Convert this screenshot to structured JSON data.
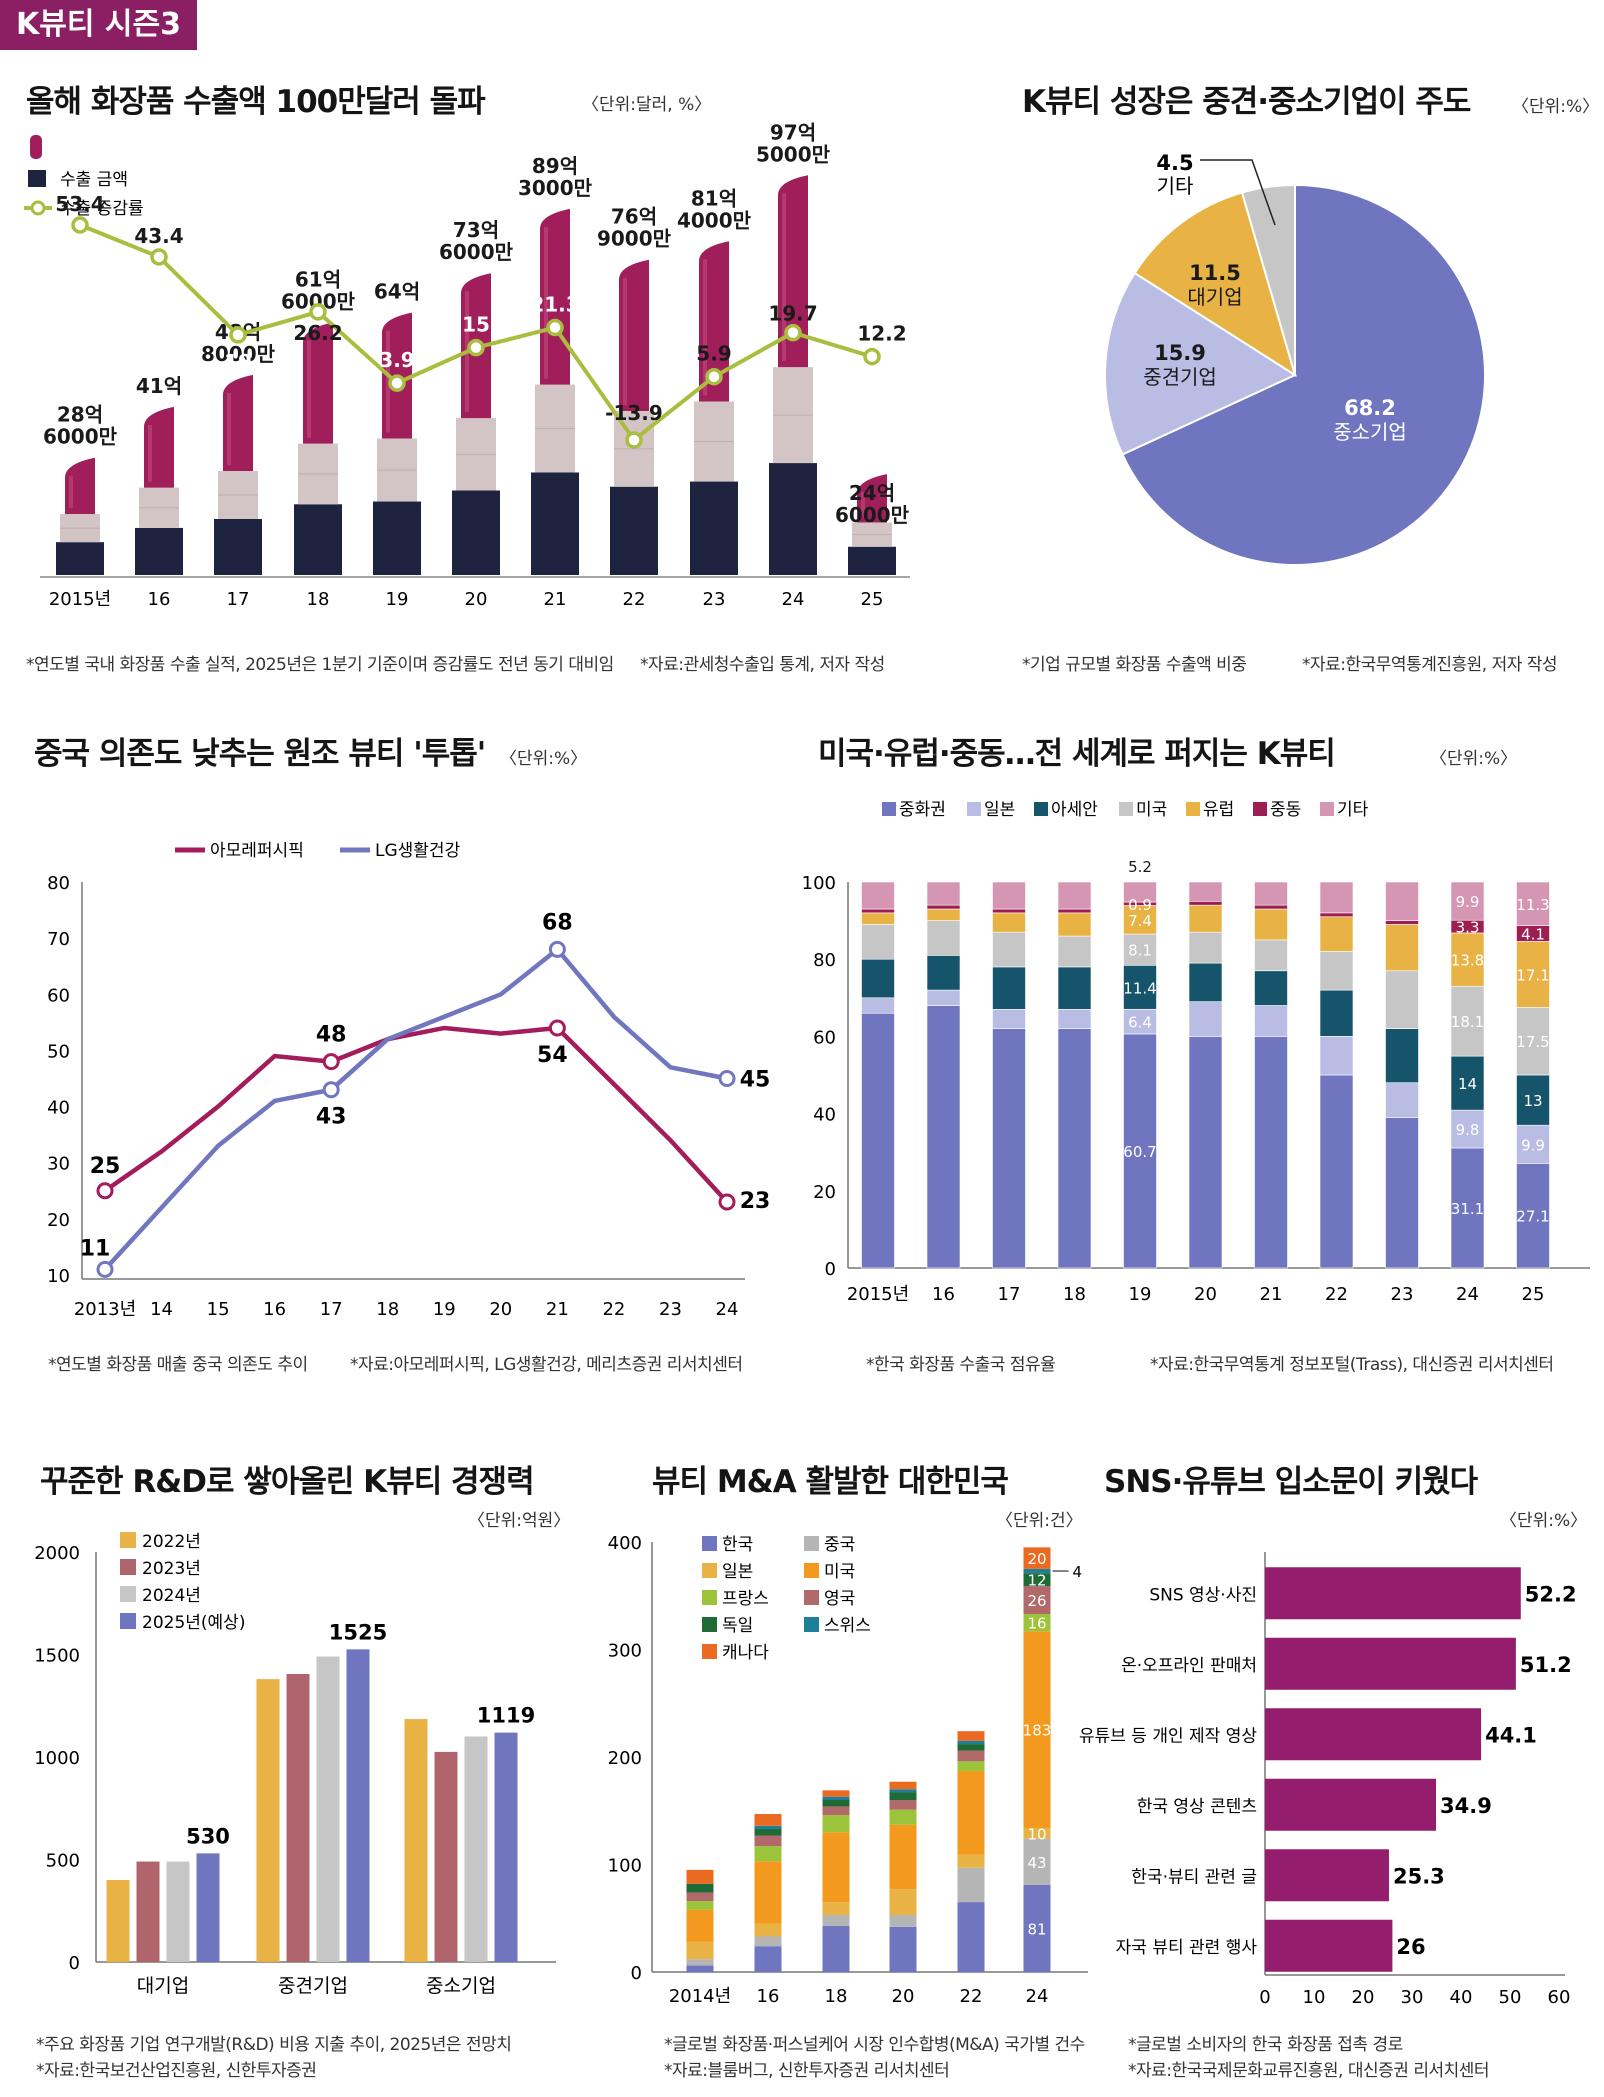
{
  "header": {
    "tag": "K뷰티 시즌3"
  },
  "panels": {
    "exports": {
      "title": "올해 화장품 수출액 100만달러 돌파",
      "unit": "〈단위:달러, %〉",
      "note": "*연도별 국내 화장품 수출 실적, 2025년은 1분기 기준이며 증감률도 전년 동기 대비임",
      "source": "*자료:관세청수출입 통계, 저자 작성"
    },
    "company_size": {
      "title": "K뷰티 성장은 중견·중소기업이 주도",
      "unit": "〈단위:%〉",
      "note": "*기업 규모별 화장품 수출액 비중",
      "source": "*자료:한국무역통계진흥원, 저자 작성"
    },
    "china_dependence": {
      "title": "중국 의존도 낮추는 원조 뷰티 '투톱'",
      "unit": "〈단위:%〉",
      "note": "*연도별 화장품 매출 중국 의존도 추이",
      "source": "*자료:아모레퍼시픽, LG생활건강, 메리츠증권 리서치센터"
    },
    "export_share": {
      "title": "미국·유럽·중동…전 세계로 퍼지는 K뷰티",
      "unit": "〈단위:%〉",
      "note": "*한국 화장품 수출국 점유율",
      "source": "*자료:한국무역통계 정보포털(Trass), 대신증권 리서치센터"
    },
    "rnd": {
      "title": "꾸준한 R&D로 쌓아올린 K뷰티 경쟁력",
      "unit": "〈단위:억원〉",
      "note": "*주요 화장품 기업 연구개발(R&D) 비용 지출 추이, 2025년은 전망치",
      "source": "*자료:한국보건산업진흥원, 신한투자증권"
    },
    "mna": {
      "title": "뷰티 M&A 활발한 대한민국",
      "unit": "〈단위:건〉",
      "note": "*글로벌 화장품·퍼스널케어 시장 인수합병(M&A) 국가별 건수",
      "source": "*자료:블룸버그, 신한투자증권 리서치센터"
    },
    "sns": {
      "title": "SNS·유튜브 입소문이 키웠다",
      "unit": "〈단위:%〉",
      "note": "*글로벌 소비자의 한국 화장품 접촉 경로",
      "source": "*자료:한국국제문화교류진흥원, 대신증권 리서치센터"
    }
  },
  "colors": {
    "tag": "#8a1f64",
    "lipstick": "#a01e59",
    "navy": "#1e2340",
    "beige": "#d3c4c6",
    "green_line": "#aabd3e",
    "amore": "#a41c5c",
    "lg": "#7077bf",
    "periwinkle": "#6f75bf",
    "light_lav": "#b9bde3",
    "orange": "#e8b245",
    "gray": "#c6c6c6"
  },
  "chart_data": [
    {
      "id": "exports",
      "type": "bar",
      "categories": [
        "2015년",
        "16",
        "17",
        "18",
        "19",
        "20",
        "21",
        "22",
        "23",
        "24",
        "25"
      ],
      "series": [
        {
          "name": "수출 금액",
          "values": [
            2.86,
            4.1,
            4.88,
            6.16,
            6.4,
            7.36,
            8.93,
            7.69,
            8.14,
            9.75,
            2.46
          ],
          "unit": "억 달러(×10억)"
        },
        {
          "name": "수출 증감률",
          "values": [
            53.4,
            43.4,
            19,
            26.2,
            3.9,
            15,
            21.3,
            -13.9,
            5.9,
            19.7,
            12.2
          ],
          "unit": "%"
        }
      ],
      "amount_labels": [
        [
          "28억",
          "6000만"
        ],
        [
          "41억"
        ],
        [
          "48억",
          "8000만"
        ],
        [
          "61억",
          "6000만"
        ],
        [
          "64억"
        ],
        [
          "73억",
          "6000만"
        ],
        [
          "89억",
          "3000만"
        ],
        [
          "76억",
          "9000만"
        ],
        [
          "81억",
          "4000만"
        ],
        [
          "97억",
          "5000만"
        ],
        [
          "24억",
          "6000만"
        ]
      ],
      "rate_labels": [
        "53.4",
        "43.4",
        "19",
        "26.2",
        "3.9",
        "15",
        "21.3",
        "-13.9",
        "5.9",
        "19.7",
        "12.2"
      ],
      "legend": [
        "수출 금액",
        "수출 증감률"
      ]
    },
    {
      "id": "company_size",
      "type": "pie",
      "slices": [
        {
          "label": "중소기업",
          "value": 68.2,
          "text": "68.2"
        },
        {
          "label": "중견기업",
          "value": 15.9,
          "text": "15.9"
        },
        {
          "label": "대기업",
          "value": 11.5,
          "text": "11.5"
        },
        {
          "label": "기타",
          "value": 4.5,
          "text": "4.5"
        }
      ]
    },
    {
      "id": "china_dependence",
      "type": "line",
      "x": [
        "2013년",
        "14",
        "15",
        "16",
        "17",
        "18",
        "19",
        "20",
        "21",
        "22",
        "23",
        "24"
      ],
      "ylim": [
        10,
        80
      ],
      "yticks": [
        "80",
        "70",
        "60",
        "50",
        "40",
        "30",
        "20",
        "10"
      ],
      "series": [
        {
          "name": "아모레퍼시픽",
          "values": [
            25,
            32,
            40,
            49,
            48,
            52,
            54,
            53,
            54,
            44,
            34,
            23
          ]
        },
        {
          "name": "LG생활건강",
          "values": [
            11,
            22,
            33,
            41,
            43,
            52,
            56,
            60,
            68,
            56,
            47,
            45
          ]
        }
      ],
      "annotations": [
        {
          "series": 0,
          "index": 0,
          "text": "25"
        },
        {
          "series": 0,
          "index": 4,
          "text": "48"
        },
        {
          "series": 0,
          "index": 8,
          "text": "54"
        },
        {
          "series": 0,
          "index": 11,
          "text": "23"
        },
        {
          "series": 1,
          "index": 0,
          "text": "11"
        },
        {
          "series": 1,
          "index": 4,
          "text": "43"
        },
        {
          "series": 1,
          "index": 8,
          "text": "68"
        },
        {
          "series": 1,
          "index": 11,
          "text": "45"
        }
      ]
    },
    {
      "id": "export_share",
      "type": "bar",
      "stacked": true,
      "categories": [
        "2015년",
        "16",
        "17",
        "18",
        "19",
        "20",
        "21",
        "22",
        "23",
        "24",
        "25"
      ],
      "ylim": [
        0,
        100
      ],
      "yticks": [
        "100",
        "80",
        "60",
        "40",
        "20",
        "0"
      ],
      "series": [
        {
          "name": "중화권",
          "values": [
            66,
            68,
            62,
            62,
            60.7,
            60,
            60,
            50,
            39,
            31.1,
            27.1
          ]
        },
        {
          "name": "일본",
          "values": [
            4,
            4,
            5,
            5,
            6.4,
            9,
            8,
            10,
            9,
            9.8,
            9.9
          ]
        },
        {
          "name": "아세안",
          "values": [
            10,
            9,
            11,
            11,
            11.4,
            10,
            9,
            12,
            14,
            14,
            13
          ]
        },
        {
          "name": "미국",
          "values": [
            9,
            9,
            9,
            8,
            8.1,
            8,
            8,
            10,
            15,
            18.1,
            17.5
          ]
        },
        {
          "name": "유럽",
          "values": [
            3,
            3,
            5,
            6,
            7.4,
            7,
            8,
            9,
            12,
            13.8,
            17.1
          ]
        },
        {
          "name": "중동",
          "values": [
            1,
            1,
            1,
            1,
            0.9,
            1,
            1,
            1,
            1,
            3.3,
            4.1
          ]
        },
        {
          "name": "기타",
          "values": [
            7,
            6,
            7,
            7,
            5.2,
            5,
            6,
            8,
            10,
            9.9,
            11.3
          ]
        }
      ],
      "labels": [
        {
          "col": 4,
          "series": 6,
          "text": "5.2",
          "above": true
        },
        {
          "col": 4,
          "series": 5,
          "text": "0.9"
        },
        {
          "col": 4,
          "series": 4,
          "text": "7.4"
        },
        {
          "col": 4,
          "series": 3,
          "text": "8.1"
        },
        {
          "col": 4,
          "series": 2,
          "text": "11.4"
        },
        {
          "col": 4,
          "series": 1,
          "text": "6.4"
        },
        {
          "col": 4,
          "series": 0,
          "text": "60.7"
        },
        {
          "col": 9,
          "series": 6,
          "text": "9.9"
        },
        {
          "col": 9,
          "series": 5,
          "text": "3.3"
        },
        {
          "col": 9,
          "series": 4,
          "text": "13.8"
        },
        {
          "col": 9,
          "series": 3,
          "text": "18.1"
        },
        {
          "col": 9,
          "series": 2,
          "text": "14"
        },
        {
          "col": 9,
          "series": 1,
          "text": "9.8"
        },
        {
          "col": 9,
          "series": 0,
          "text": "31.1"
        },
        {
          "col": 10,
          "series": 6,
          "text": "11.3"
        },
        {
          "col": 10,
          "series": 5,
          "text": "4.1"
        },
        {
          "col": 10,
          "series": 4,
          "text": "17.1"
        },
        {
          "col": 10,
          "series": 3,
          "text": "17.5"
        },
        {
          "col": 10,
          "series": 2,
          "text": "13"
        },
        {
          "col": 10,
          "series": 1,
          "text": "9.9"
        },
        {
          "col": 10,
          "series": 0,
          "text": "27.1"
        }
      ]
    },
    {
      "id": "rnd",
      "type": "bar",
      "categories": [
        "대기업",
        "중견기업",
        "중소기업"
      ],
      "ylim": [
        0,
        2000
      ],
      "yticks": [
        "2000",
        "1500",
        "1000",
        "500",
        "0"
      ],
      "series": [
        {
          "name": "2022년",
          "values": [
            400,
            1380,
            1185
          ]
        },
        {
          "name": "2023년",
          "values": [
            490,
            1405,
            1025
          ]
        },
        {
          "name": "2024년",
          "values": [
            490,
            1490,
            1100
          ]
        },
        {
          "name": "2025년(예상)",
          "values": [
            530,
            1525,
            1119
          ]
        }
      ],
      "value_labels": [
        "530",
        "1525",
        "1119"
      ]
    },
    {
      "id": "mna",
      "type": "bar",
      "stacked": true,
      "categories": [
        "2014년",
        "16",
        "18",
        "20",
        "22",
        "24"
      ],
      "ylim": [
        0,
        400
      ],
      "yticks": [
        "400",
        "300",
        "200",
        "100",
        "0"
      ],
      "series": [
        {
          "name": "한국",
          "values": [
            6,
            24,
            43,
            42,
            65,
            81
          ]
        },
        {
          "name": "중국",
          "values": [
            6,
            9,
            10,
            11,
            32,
            43
          ]
        },
        {
          "name": "일본",
          "values": [
            16,
            12,
            12,
            24,
            12,
            10
          ]
        },
        {
          "name": "미국",
          "values": [
            30,
            58,
            65,
            60,
            78,
            183
          ]
        },
        {
          "name": "프랑스",
          "values": [
            8,
            14,
            16,
            14,
            9,
            16
          ]
        },
        {
          "name": "영국",
          "values": [
            8,
            10,
            8,
            9,
            10,
            26
          ]
        },
        {
          "name": "독일",
          "values": [
            8,
            6,
            6,
            7,
            6,
            12
          ]
        },
        {
          "name": "스위스",
          "values": [
            0,
            3,
            3,
            3,
            3,
            4
          ]
        },
        {
          "name": "캐나다",
          "values": [
            13,
            11,
            6,
            7,
            9,
            20
          ]
        }
      ],
      "labels": [
        {
          "series": 0,
          "text": "81"
        },
        {
          "series": 1,
          "text": "43"
        },
        {
          "series": 2,
          "text": "10"
        },
        {
          "series": 3,
          "text": "183"
        },
        {
          "series": 4,
          "text": "16"
        },
        {
          "series": 5,
          "text": "26"
        },
        {
          "series": 6,
          "text": "12"
        },
        {
          "series": 8,
          "text": "20"
        }
      ],
      "callout": "4"
    },
    {
      "id": "sns",
      "type": "bar",
      "orientation": "horizontal",
      "categories": [
        "SNS 영상·사진",
        "온·오프라인 판매처",
        "유튜브 등 개인 제작 영상",
        "한국 영상 콘텐츠",
        "한국·뷰티 관련 글",
        "자국 뷰티 관련 행사"
      ],
      "values": [
        52.2,
        51.2,
        44.1,
        34.9,
        25.3,
        26
      ],
      "value_labels": [
        "52.2",
        "51.2",
        "44.1",
        "34.9",
        "25.3",
        "26"
      ],
      "xlim": [
        0,
        60
      ],
      "xticks": [
        "0",
        "10",
        "20",
        "30",
        "40",
        "50",
        "60"
      ]
    }
  ]
}
